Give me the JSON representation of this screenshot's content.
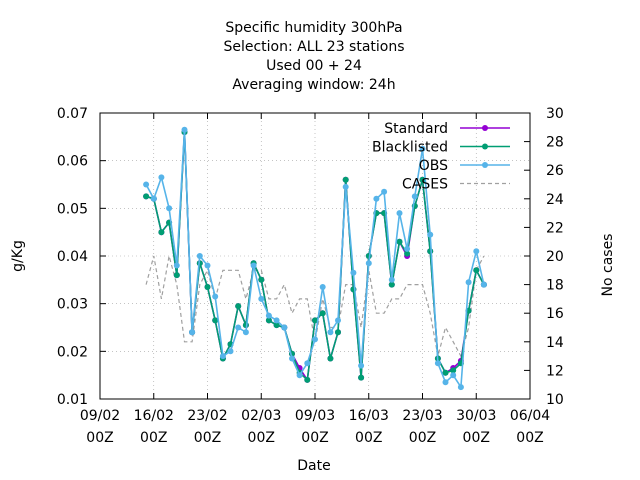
{
  "chart_data": {
    "type": "line",
    "title_lines": [
      "Specific humidity 300hPa",
      "Selection: ALL     23 stations",
      "Used  00 + 24",
      "Averaging window: 24h"
    ],
    "xlabel": "Date",
    "ylabel": "g/Kg",
    "y2label": "No cases",
    "ylim": [
      0.01,
      0.07
    ],
    "y2lim": [
      10,
      30
    ],
    "xlim": [
      "2015-02-09",
      "2015-04-06"
    ],
    "yticks": [
      "0.01",
      "0.02",
      "0.03",
      "0.04",
      "0.05",
      "0.06",
      "0.07"
    ],
    "y2ticks": [
      "10",
      "12",
      "14",
      "16",
      "18",
      "20",
      "22",
      "24",
      "26",
      "28",
      "30"
    ],
    "xticks": [
      {
        "date": "2015-02-09",
        "l1": "09/02",
        "l2": "00Z"
      },
      {
        "date": "2015-02-16",
        "l1": "16/02",
        "l2": "00Z"
      },
      {
        "date": "2015-02-23",
        "l1": "23/02",
        "l2": "00Z"
      },
      {
        "date": "2015-03-02",
        "l1": "02/03",
        "l2": "00Z"
      },
      {
        "date": "2015-03-09",
        "l1": "09/03",
        "l2": "00Z"
      },
      {
        "date": "2015-03-16",
        "l1": "16/03",
        "l2": "00Z"
      },
      {
        "date": "2015-03-23",
        "l1": "23/03",
        "l2": "00Z"
      },
      {
        "date": "2015-03-30",
        "l1": "30/03",
        "l2": "00Z"
      },
      {
        "date": "2015-04-06",
        "l1": "06/04",
        "l2": "00Z"
      }
    ],
    "x": [
      "2015-02-15",
      "2015-02-16",
      "2015-02-17",
      "2015-02-18",
      "2015-02-19",
      "2015-02-20",
      "2015-02-21",
      "2015-02-22",
      "2015-02-23",
      "2015-02-24",
      "2015-02-25",
      "2015-02-26",
      "2015-02-27",
      "2015-02-28",
      "2015-03-01",
      "2015-03-02",
      "2015-03-03",
      "2015-03-04",
      "2015-03-05",
      "2015-03-06",
      "2015-03-07",
      "2015-03-08",
      "2015-03-09",
      "2015-03-10",
      "2015-03-11",
      "2015-03-12",
      "2015-03-13",
      "2015-03-14",
      "2015-03-15",
      "2015-03-16",
      "2015-03-17",
      "2015-03-18",
      "2015-03-19",
      "2015-03-20",
      "2015-03-21",
      "2015-03-22",
      "2015-03-23",
      "2015-03-24",
      "2015-03-25",
      "2015-03-26",
      "2015-03-27",
      "2015-03-28",
      "2015-03-29",
      "2015-03-30",
      "2015-03-31"
    ],
    "series": [
      {
        "name": "Standard",
        "color": "#9400d3",
        "axis": "y",
        "style": "linespoints",
        "values": [
          0.0525,
          0.052,
          0.045,
          0.047,
          0.036,
          0.066,
          0.024,
          0.0385,
          0.0335,
          0.0265,
          0.0185,
          0.0215,
          0.0295,
          0.0255,
          0.0385,
          0.035,
          0.0265,
          0.0255,
          0.025,
          0.0195,
          0.0165,
          0.014,
          0.0265,
          0.028,
          0.0185,
          0.024,
          0.056,
          0.033,
          0.0145,
          0.04,
          0.049,
          0.049,
          0.034,
          0.043,
          0.04,
          0.0505,
          0.056,
          0.041,
          0.0185,
          0.0155,
          0.0165,
          0.018,
          0.0285,
          0.037,
          0.034
        ]
      },
      {
        "name": "Blacklisted",
        "color": "#009e73",
        "axis": "y",
        "style": "linespoints",
        "values": [
          0.0525,
          0.052,
          0.045,
          0.047,
          0.036,
          0.066,
          0.024,
          0.0385,
          0.0335,
          0.0265,
          0.0185,
          0.0215,
          0.0295,
          0.0255,
          0.0385,
          0.035,
          0.0265,
          0.0255,
          0.025,
          0.0195,
          0.0155,
          0.014,
          0.0265,
          0.028,
          0.0185,
          0.024,
          0.056,
          0.033,
          0.0145,
          0.04,
          0.049,
          0.049,
          0.034,
          0.043,
          0.0405,
          0.0505,
          0.056,
          0.041,
          0.0185,
          0.0155,
          0.016,
          0.0175,
          0.0285,
          0.037,
          0.034
        ]
      },
      {
        "name": "OBS",
        "color": "#56b4e9",
        "axis": "y",
        "style": "linespoints",
        "values": [
          0.055,
          0.052,
          0.0565,
          0.05,
          0.038,
          0.0665,
          0.024,
          0.04,
          0.038,
          0.0315,
          0.019,
          0.02,
          0.025,
          0.024,
          0.038,
          0.031,
          0.0275,
          0.0265,
          0.025,
          0.0185,
          0.015,
          0.0175,
          0.0225,
          0.0335,
          0.024,
          0.0265,
          0.0545,
          0.0365,
          0.017,
          0.0385,
          0.052,
          0.0535,
          0.035,
          0.049,
          0.0415,
          0.0525,
          0.0625,
          0.0445,
          0.0175,
          0.0135,
          0.015,
          0.0125,
          0.0345,
          0.041,
          0.034
        ]
      },
      {
        "name": "CASES",
        "color": "#a0a0a0",
        "axis": "y2",
        "style": "dashed",
        "values": [
          18,
          20,
          17,
          20,
          18,
          14,
          14,
          18,
          19,
          17,
          19,
          19,
          19,
          17,
          19,
          19,
          17,
          17,
          18,
          16,
          17,
          17,
          14,
          17,
          15,
          15,
          18,
          18,
          15,
          19,
          16,
          16,
          17,
          17,
          18,
          18,
          18,
          16,
          13,
          15,
          14,
          13,
          15,
          19,
          20
        ]
      }
    ],
    "legend_position": "top-right",
    "grid": true
  }
}
